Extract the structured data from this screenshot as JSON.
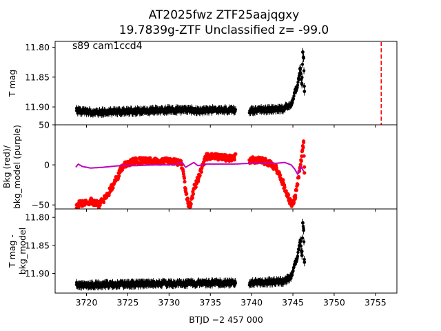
{
  "title_line1": "AT2025fwz  ZTF25aajqgxy",
  "title_line2": "19.7839g-ZTF Unclassified z= -99.0",
  "panel_annotation": "s89 cam1ccd4",
  "colors": {
    "flux": "#000000",
    "background": "#ff0000",
    "bkg_model": "#bf00bf",
    "marker_line": "#ff0000"
  },
  "chart_data": [
    {
      "type": "scatter",
      "panel": "top",
      "ylabel": "T mag",
      "ylim": [
        11.93,
        11.79
      ],
      "y_inverted": true,
      "yticks": [
        11.8,
        11.85,
        11.9
      ],
      "ytick_labels": [
        "11.80",
        "11.85",
        "11.90"
      ],
      "xlim": [
        3716.2,
        3757.6
      ],
      "vertical_line_x": 3755.7,
      "series": [
        {
          "marker": "errorbar-dot",
          "color": "#000000",
          "x": [
            3718.8,
            3720.0,
            3722.0,
            3724.0,
            3726.0,
            3728.0,
            3730.0,
            3732.0,
            3734.0,
            3736.0,
            3737.9,
            3739.9,
            3741.0,
            3742.5,
            3743.8,
            3744.5,
            3744.9,
            3745.2,
            3745.5,
            3745.7,
            3745.9,
            3746.1,
            3746.2,
            3746.3,
            3746.4
          ],
          "y": [
            11.906,
            11.908,
            11.909,
            11.908,
            11.907,
            11.906,
            11.905,
            11.905,
            11.906,
            11.905,
            11.905,
            11.906,
            11.905,
            11.904,
            11.903,
            11.898,
            11.893,
            11.876,
            11.868,
            11.852,
            11.835,
            11.862,
            11.808,
            11.818,
            11.874
          ]
        }
      ]
    },
    {
      "type": "scatter",
      "panel": "middle",
      "ylabel": "Bkg (red)/ bkg_model (purple)",
      "ylim": [
        -55,
        50
      ],
      "yticks": [
        -50,
        0,
        50
      ],
      "ytick_labels": [
        "−50",
        "0",
        "50"
      ],
      "xlim": [
        3716.2,
        3757.6
      ],
      "series": [
        {
          "marker": "dot",
          "color": "#ff0000",
          "x": [
            3718.8,
            3719.5,
            3720.5,
            3721.5,
            3722.5,
            3723.5,
            3724.5,
            3726.0,
            3728.0,
            3730.0,
            3731.5,
            3732.0,
            3732.3,
            3732.6,
            3733.0,
            3733.6,
            3734.5,
            3736.0,
            3737.5,
            3737.9,
            3739.9,
            3741.0,
            3742.0,
            3743.0,
            3743.8,
            3744.4,
            3744.9,
            3745.3,
            3745.7,
            3746.0,
            3746.3,
            3746.4
          ],
          "y": [
            -50,
            -48,
            -45,
            -50,
            -38,
            -20,
            0,
            5,
            5,
            5,
            2,
            -30,
            -48,
            -52,
            -30,
            -15,
            10,
            10,
            8,
            10,
            6,
            6,
            3,
            -5,
            -22,
            -40,
            -50,
            -38,
            -15,
            5,
            28,
            -10
          ]
        },
        {
          "marker": "line",
          "color": "#bf00bf",
          "x": [
            3718.7,
            3719.0,
            3719.5,
            3720.5,
            3722.0,
            3724.0,
            3726.0,
            3728.0,
            3730.0,
            3731.0,
            3731.6,
            3732.0,
            3732.5,
            3733.0,
            3733.5,
            3734.5,
            3736.0,
            3737.9,
            3739.9,
            3741.0,
            3743.0,
            3744.0,
            3744.8,
            3745.2,
            3745.6,
            3746.0,
            3746.3
          ],
          "y": [
            -3,
            1,
            -2,
            -4,
            -3,
            -1,
            -1,
            0,
            0,
            1,
            3,
            -3,
            0,
            3,
            -1,
            1,
            1,
            1,
            2,
            2,
            2,
            3,
            0,
            -5,
            -12,
            -2,
            -8
          ]
        }
      ]
    },
    {
      "type": "scatter",
      "panel": "bottom",
      "ylabel": "T mag - bkg_model",
      "ylim": [
        11.935,
        11.785
      ],
      "y_inverted": true,
      "yticks": [
        11.8,
        11.85,
        11.9
      ],
      "ytick_labels": [
        "11.80",
        "11.85",
        "11.90"
      ],
      "xlim": [
        3716.2,
        3757.6
      ],
      "xticks": [
        3720,
        3725,
        3730,
        3735,
        3740,
        3745,
        3750,
        3755
      ],
      "xtick_labels": [
        "3720",
        "3725",
        "3730",
        "3735",
        "3740",
        "3745",
        "3750",
        "3755"
      ],
      "xlabel": "BTJD −2 457 000",
      "series": [
        {
          "marker": "errorbar-dot",
          "color": "#000000",
          "x": [
            3718.8,
            3720.0,
            3722.0,
            3724.0,
            3726.0,
            3728.0,
            3730.0,
            3732.0,
            3734.0,
            3736.0,
            3737.9,
            3739.9,
            3741.0,
            3742.5,
            3743.8,
            3744.5,
            3744.9,
            3745.2,
            3745.5,
            3745.7,
            3745.9,
            3746.1,
            3746.2,
            3746.3,
            3746.4
          ],
          "y": [
            11.92,
            11.921,
            11.92,
            11.92,
            11.919,
            11.918,
            11.918,
            11.918,
            11.917,
            11.917,
            11.917,
            11.917,
            11.916,
            11.915,
            11.914,
            11.909,
            11.903,
            11.885,
            11.874,
            11.857,
            11.842,
            11.868,
            11.81,
            11.823,
            11.88
          ]
        }
      ]
    }
  ]
}
